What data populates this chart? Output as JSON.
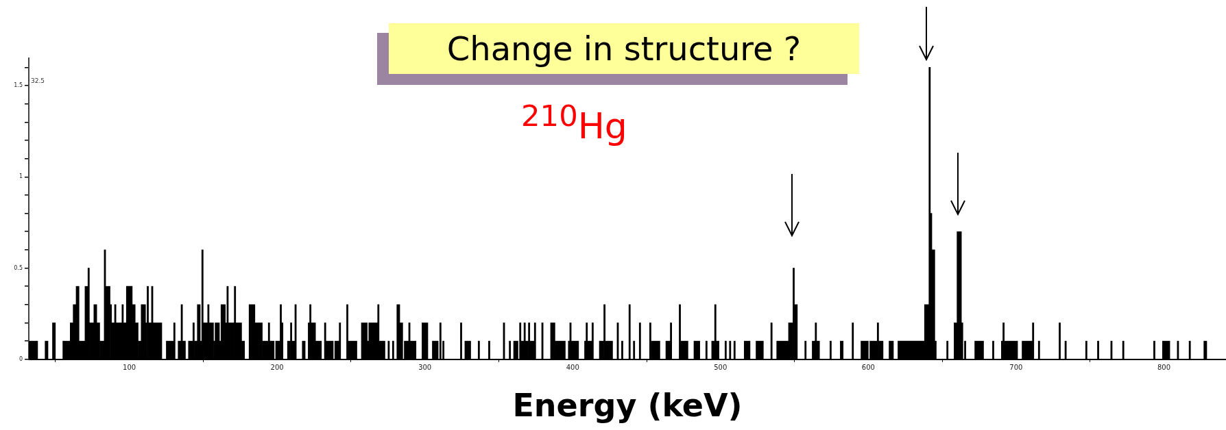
{
  "chart_data": {
    "type": "histogram",
    "title": "Change in structure ?",
    "xlabel": "Energy (keV)",
    "annotations": [
      "$^{210}$Hg",
      "32.5"
    ],
    "bins": [
      32,
      38,
      43,
      45,
      48,
      50,
      55,
      60,
      62,
      64,
      66,
      70,
      72,
      73,
      76,
      78,
      80,
      83,
      84,
      87,
      88,
      90,
      91,
      95,
      96,
      98,
      102,
      104,
      106,
      108,
      111,
      112,
      113,
      115,
      116,
      122,
      125,
      130,
      131,
      133,
      135,
      136,
      138,
      140,
      143,
      144,
      146,
      148,
      149,
      150,
      153,
      154,
      157,
      158,
      161,
      162,
      165,
      166,
      167,
      171,
      172,
      176,
      178,
      181,
      185,
      190,
      194,
      195,
      198,
      199,
      202,
      203,
      204,
      207,
      209,
      210,
      212,
      213,
      217,
      219,
      221,
      222,
      223,
      226,
      230,
      232,
      233,
      238,
      239,
      242,
      243,
      247,
      248,
      254,
      257,
      261,
      262,
      268,
      269,
      273,
      275,
      276,
      278,
      279,
      281,
      283,
      285,
      286,
      289,
      290,
      294,
      298,
      302,
      305,
      309,
      310,
      311,
      312,
      313,
      324,
      325,
      327,
      331,
      336,
      337,
      343,
      344,
      353,
      354,
      357,
      358,
      360,
      363,
      364,
      365,
      367,
      368,
      370,
      371,
      374,
      375,
      379,
      380,
      385,
      388,
      395,
      397,
      398,
      399,
      404,
      408,
      409,
      410,
      413,
      414,
      418,
      421,
      422,
      427,
      430,
      431,
      433,
      434,
      438,
      439,
      441,
      442,
      445,
      446,
      452,
      453,
      459,
      463,
      466,
      467,
      472,
      473,
      478,
      482,
      486,
      490,
      491,
      494,
      496,
      497,
      499,
      503,
      504,
      506,
      507,
      509,
      510,
      516,
      520,
      524,
      529,
      534,
      535,
      538,
      546,
      549,
      550,
      552,
      557,
      558,
      562,
      564,
      565,
      567,
      574,
      575,
      581,
      583,
      589,
      590,
      595,
      600,
      601,
      606,
      607,
      610,
      614,
      617,
      620,
      638,
      641,
      642,
      643,
      645,
      646,
      653,
      654,
      658,
      660,
      663,
      664,
      665,
      666,
      672,
      678,
      684,
      685,
      690,
      691,
      692,
      701,
      704,
      711,
      712,
      715,
      716,
      729,
      730,
      733,
      734,
      747,
      748,
      755,
      756,
      764,
      765,
      772,
      773,
      793,
      794,
      799,
      804,
      809,
      810,
      817,
      818,
      827,
      829,
      842
    ],
    "values": [
      0.1,
      0,
      0.1,
      0,
      0.2,
      0,
      0.1,
      0.2,
      0.3,
      0.4,
      0.1,
      0.4,
      0.5,
      0.2,
      0.3,
      0.2,
      0.1,
      0.6,
      0.4,
      0.3,
      0.2,
      0.3,
      0.2,
      0.3,
      0.2,
      0.4,
      0.3,
      0.2,
      0.1,
      0.3,
      0.2,
      0.4,
      0.2,
      0.4,
      0.2,
      0,
      0.1,
      0.2,
      0,
      0.1,
      0.3,
      0.1,
      0,
      0.1,
      0.2,
      0.1,
      0.3,
      0.1,
      0.6,
      0.2,
      0.3,
      0.2,
      0.1,
      0.2,
      0.1,
      0.3,
      0.2,
      0.4,
      0.2,
      0.4,
      0.2,
      0.1,
      0,
      0.3,
      0.2,
      0.1,
      0.2,
      0.1,
      0,
      0.1,
      0.3,
      0.2,
      0,
      0.1,
      0.2,
      0.1,
      0.3,
      0,
      0.1,
      0,
      0.2,
      0.3,
      0.2,
      0.1,
      0,
      0.2,
      0.1,
      0,
      0.1,
      0.2,
      0,
      0.3,
      0.1,
      0,
      0.2,
      0.1,
      0.2,
      0.3,
      0.1,
      0,
      0.1,
      0,
      0.1,
      0,
      0.3,
      0.2,
      0,
      0.1,
      0.2,
      0.1,
      0,
      0.2,
      0,
      0.1,
      0,
      0.2,
      0,
      0.1,
      0,
      0.2,
      0,
      0.1,
      0,
      0.1,
      0,
      0.1,
      0,
      0.2,
      0,
      0.1,
      0,
      0.1,
      0,
      0.2,
      0.1,
      0.2,
      0.1,
      0.2,
      0.1,
      0.2,
      0,
      0.2,
      0,
      0.2,
      0.1,
      0,
      0.1,
      0.2,
      0.1,
      0,
      0.1,
      0.2,
      0.1,
      0.2,
      0,
      0.1,
      0.3,
      0.1,
      0,
      0.2,
      0,
      0.1,
      0,
      0.3,
      0,
      0.1,
      0,
      0.2,
      0,
      0.2,
      0.1,
      0,
      0.1,
      0.2,
      0,
      0.3,
      0.1,
      0,
      0.1,
      0,
      0.1,
      0,
      0.1,
      0.3,
      0.1,
      0,
      0.1,
      0,
      0.1,
      0,
      0.1,
      0,
      0.1,
      0,
      0.1,
      0,
      0.2,
      0,
      0.1,
      0.2,
      0.5,
      0.3,
      0,
      0.1,
      0,
      0.1,
      0.2,
      0.1,
      0,
      0.1,
      0,
      0.1,
      0,
      0.2,
      0,
      0.1,
      0,
      0.1,
      0.2,
      0.1,
      0,
      0.1,
      0,
      0.1,
      0.3,
      1.6,
      0.8,
      0.6,
      0.1,
      0,
      0.1,
      0,
      0.2,
      0.7,
      0.2,
      0,
      0.1,
      0,
      0.1,
      0,
      0.1,
      0,
      0.1,
      0.2,
      0.1,
      0,
      0.1,
      0.2,
      0,
      0.1,
      0,
      0.2,
      0,
      0.1,
      0,
      0.1,
      0,
      0.1,
      0,
      0.1,
      0,
      0.1,
      0,
      0.1,
      0,
      0.1,
      0,
      0.1,
      0,
      0.1,
      0,
      0.1,
      0
    ],
    "color": "#000000",
    "xlim": [
      32,
      842
    ],
    "xticks": [
      100,
      200,
      300,
      400,
      500,
      600,
      700,
      800
    ],
    "ylim": [
      0,
      1.65
    ],
    "yticks": [
      0,
      {
        "value": 0.1,
        "label": null
      },
      {
        "value": 0.2,
        "label": null
      },
      {
        "value": 0.3,
        "label": null
      },
      {
        "value": 0.4,
        "label": null
      },
      0.5,
      {
        "value": 0.6,
        "label": null
      },
      {
        "value": 0.7,
        "label": null
      },
      {
        "value": 0.8,
        "label": null
      },
      {
        "value": 0.9,
        "label": null
      },
      1,
      {
        "value": 1.1,
        "label": null
      },
      {
        "value": 1.2,
        "label": null
      },
      {
        "value": 1.3,
        "label": null
      },
      {
        "value": 1.4,
        "label": null
      },
      1.5,
      {
        "value": 1.6,
        "label": null
      }
    ],
    "grid": false,
    "legend": false
  }
}
